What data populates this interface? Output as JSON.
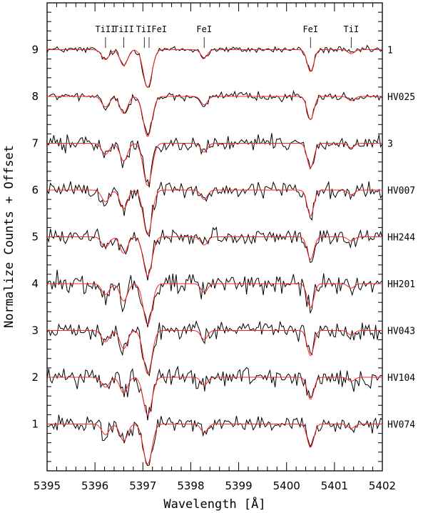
{
  "chart_data": {
    "type": "line",
    "xlabel": "Wavelength [Å]",
    "ylabel": "Normalize Counts + Offset",
    "xlim": [
      5395,
      5402
    ],
    "ylim": [
      0,
      10
    ],
    "x_ticks": [
      "5395",
      "5396",
      "5397",
      "5398",
      "5399",
      "5400",
      "5401",
      "5402"
    ],
    "y_ticks": [
      "1",
      "2",
      "3",
      "4",
      "5",
      "6",
      "7",
      "8",
      "9"
    ],
    "observed_color": "#000000",
    "model_color": "#ff2020",
    "line_ids": [
      {
        "label": "TiII",
        "x": 5396.22
      },
      {
        "label": "TiII",
        "x": 5396.6
      },
      {
        "label": "TiI",
        "x": 5397.03
      },
      {
        "label": "FeI",
        "x": 5397.13
      },
      {
        "label": "FeI",
        "x": 5398.28
      },
      {
        "label": "FeI",
        "x": 5400.5
      },
      {
        "label": "TiI",
        "x": 5401.35
      }
    ],
    "line_id_labels": [
      {
        "text": "TiII",
        "x": 5396.22
      },
      {
        "text": "TiII",
        "x": 5396.6
      },
      {
        "text": "TiIFeI",
        "x": 5397.18
      },
      {
        "text": "FeI",
        "x": 5398.28
      },
      {
        "text": "FeI",
        "x": 5400.5
      },
      {
        "text": "TiI",
        "x": 5401.35
      }
    ],
    "absorption_lines": [
      {
        "center": 5396.22,
        "depth": 0.25,
        "width": 0.08
      },
      {
        "center": 5396.6,
        "depth": 0.4,
        "width": 0.08
      },
      {
        "center": 5397.1,
        "depth": 0.95,
        "width": 0.09
      },
      {
        "center": 5398.28,
        "depth": 0.2,
        "width": 0.07
      },
      {
        "center": 5400.5,
        "depth": 0.55,
        "width": 0.07
      },
      {
        "center": 5401.35,
        "depth": 0.1,
        "width": 0.07
      }
    ],
    "series": [
      {
        "name": "1",
        "offset": 9,
        "noise": 0.05
      },
      {
        "name": "HV025",
        "offset": 8,
        "noise": 0.06
      },
      {
        "name": "3",
        "offset": 7,
        "noise": 0.12
      },
      {
        "name": "HV007",
        "offset": 6,
        "noise": 0.13
      },
      {
        "name": "HH244",
        "offset": 5,
        "noise": 0.12
      },
      {
        "name": "HH201",
        "offset": 4,
        "noise": 0.16
      },
      {
        "name": "HV043",
        "offset": 3,
        "noise": 0.14
      },
      {
        "name": "HV104",
        "offset": 2,
        "noise": 0.15
      },
      {
        "name": "HV074",
        "offset": 1,
        "noise": 0.12
      }
    ]
  }
}
